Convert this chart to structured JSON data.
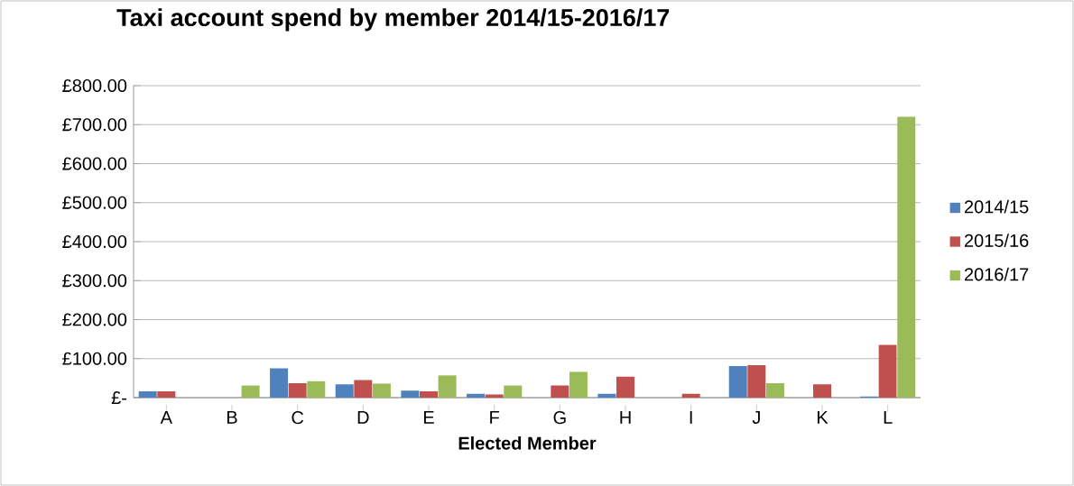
{
  "chart_data": {
    "type": "bar",
    "title": "Taxi account spend by member 2014/15-2016/17",
    "xlabel": "Elected Member",
    "categories": [
      "A",
      "B",
      "C",
      "D",
      "E",
      "F",
      "G",
      "H",
      "I",
      "J",
      "K",
      "L"
    ],
    "series": [
      {
        "name": "2014/15",
        "color": "#4f81bd",
        "values": [
          16,
          null,
          75,
          34,
          18,
          10,
          null,
          10,
          null,
          81,
          null,
          3
        ]
      },
      {
        "name": "2015/16",
        "color": "#c0504d",
        "values": [
          16,
          null,
          37,
          45,
          16,
          8,
          31,
          54,
          10,
          83,
          34,
          135
        ]
      },
      {
        "name": "2016/17",
        "color": "#9bbb59",
        "values": [
          null,
          31,
          42,
          36,
          57,
          31,
          66,
          null,
          null,
          37,
          null,
          720
        ]
      }
    ],
    "ylim": [
      0,
      800
    ],
    "yticks": [
      {
        "value": 0,
        "label": "£-"
      },
      {
        "value": 100,
        "label": "£100.00"
      },
      {
        "value": 200,
        "label": "£200.00"
      },
      {
        "value": 300,
        "label": "£300.00"
      },
      {
        "value": 400,
        "label": "£400.00"
      },
      {
        "value": 500,
        "label": "£500.00"
      },
      {
        "value": 600,
        "label": "£600.00"
      },
      {
        "value": 700,
        "label": "£700.00"
      },
      {
        "value": 800,
        "label": "£800.00"
      }
    ],
    "grid": "y",
    "legend": "right"
  }
}
